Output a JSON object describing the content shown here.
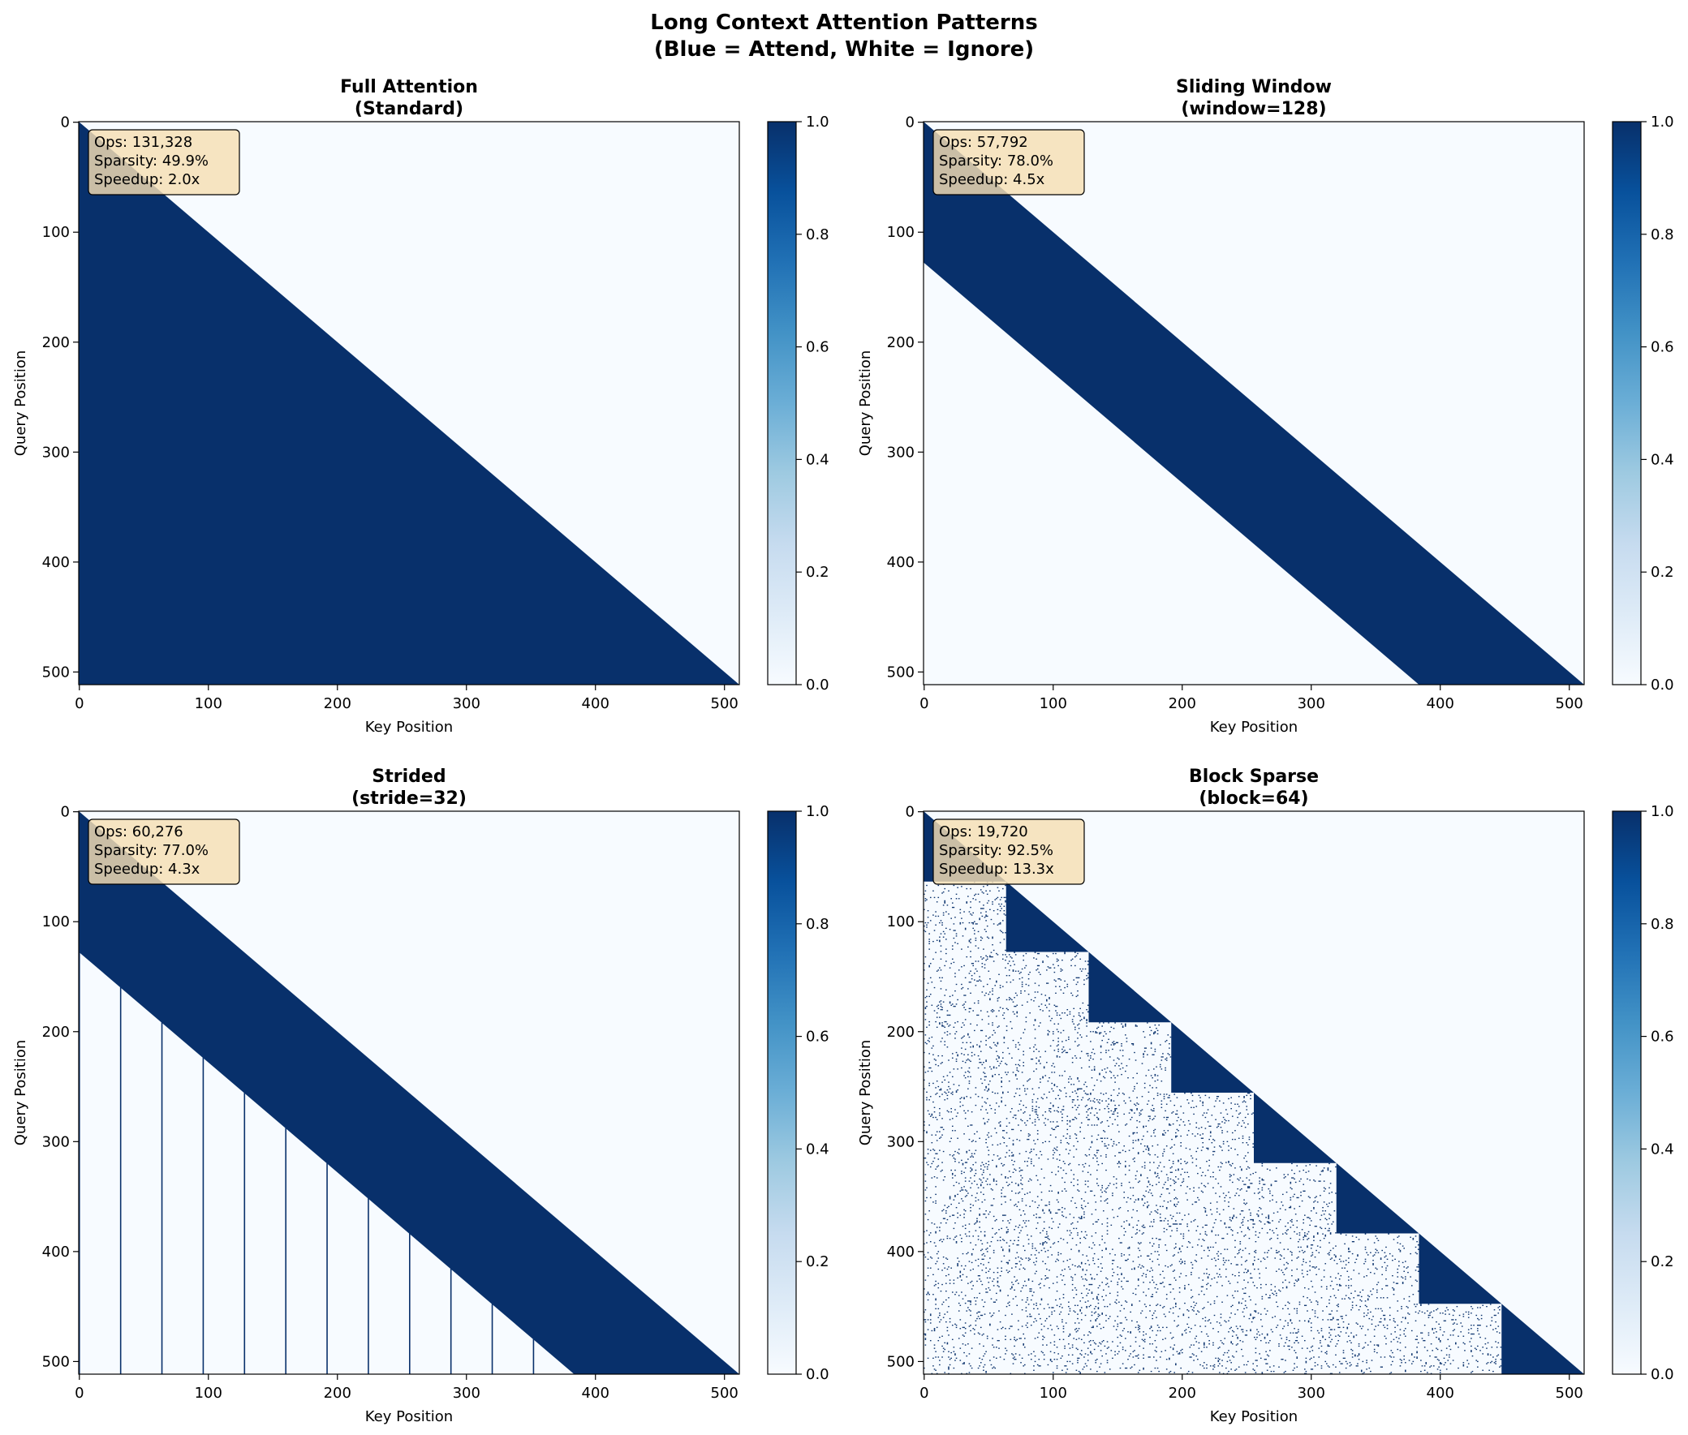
{
  "figure": {
    "title_line1": "Long Context Attention Patterns",
    "title_line2": "(Blue = Attend, White = Ignore)",
    "colormap": "Blues",
    "attend_color": "#08306b",
    "ignore_color": "#f7fbff",
    "annotation_bg": "#f5deb3"
  },
  "chart_data": [
    {
      "type": "heatmap",
      "pattern": "full",
      "title_line1": "Full Attention",
      "title_line2": "(Standard)",
      "xlabel": "Key Position",
      "ylabel": "Query Position",
      "seq_len": 512,
      "xlim": [
        0,
        511
      ],
      "ylim": [
        511,
        0
      ],
      "xticks": [
        0,
        100,
        200,
        300,
        400,
        500
      ],
      "yticks": [
        0,
        100,
        200,
        300,
        400,
        500
      ],
      "clim": [
        0,
        1
      ],
      "colorbar_ticks": [
        "0.0",
        "0.2",
        "0.4",
        "0.6",
        "0.8",
        "1.0"
      ],
      "stats": {
        "ops": "Ops: 131,328",
        "sparsity": "Sparsity: 49.9%",
        "speedup": "Speedup: 2.0x"
      }
    },
    {
      "type": "heatmap",
      "pattern": "sliding",
      "window": 128,
      "title_line1": "Sliding Window",
      "title_line2": "(window=128)",
      "xlabel": "Key Position",
      "ylabel": "Query Position",
      "seq_len": 512,
      "xlim": [
        0,
        511
      ],
      "ylim": [
        511,
        0
      ],
      "xticks": [
        0,
        100,
        200,
        300,
        400,
        500
      ],
      "yticks": [
        0,
        100,
        200,
        300,
        400,
        500
      ],
      "clim": [
        0,
        1
      ],
      "colorbar_ticks": [
        "0.0",
        "0.2",
        "0.4",
        "0.6",
        "0.8",
        "1.0"
      ],
      "stats": {
        "ops": "Ops: 57,792",
        "sparsity": "Sparsity: 78.0%",
        "speedup": "Speedup: 4.5x"
      }
    },
    {
      "type": "heatmap",
      "pattern": "strided",
      "window": 128,
      "stride": 32,
      "title_line1": "Strided",
      "title_line2": "(stride=32)",
      "xlabel": "Key Position",
      "ylabel": "Query Position",
      "seq_len": 512,
      "xlim": [
        0,
        511
      ],
      "ylim": [
        511,
        0
      ],
      "xticks": [
        0,
        100,
        200,
        300,
        400,
        500
      ],
      "yticks": [
        0,
        100,
        200,
        300,
        400,
        500
      ],
      "clim": [
        0,
        1
      ],
      "colorbar_ticks": [
        "0.0",
        "0.2",
        "0.4",
        "0.6",
        "0.8",
        "1.0"
      ],
      "stats": {
        "ops": "Ops: 60,276",
        "sparsity": "Sparsity: 77.0%",
        "speedup": "Speedup: 4.3x"
      }
    },
    {
      "type": "heatmap",
      "pattern": "block",
      "block": 64,
      "random_density": 0.05,
      "title_line1": "Block Sparse",
      "title_line2": "(block=64)",
      "xlabel": "Key Position",
      "ylabel": "Query Position",
      "seq_len": 512,
      "xlim": [
        0,
        511
      ],
      "ylim": [
        511,
        0
      ],
      "xticks": [
        0,
        100,
        200,
        300,
        400,
        500
      ],
      "yticks": [
        0,
        100,
        200,
        300,
        400,
        500
      ],
      "clim": [
        0,
        1
      ],
      "colorbar_ticks": [
        "0.0",
        "0.2",
        "0.4",
        "0.6",
        "0.8",
        "1.0"
      ],
      "stats": {
        "ops": "Ops: 19,720",
        "sparsity": "Sparsity: 92.5%",
        "speedup": "Speedup: 13.3x"
      }
    }
  ]
}
